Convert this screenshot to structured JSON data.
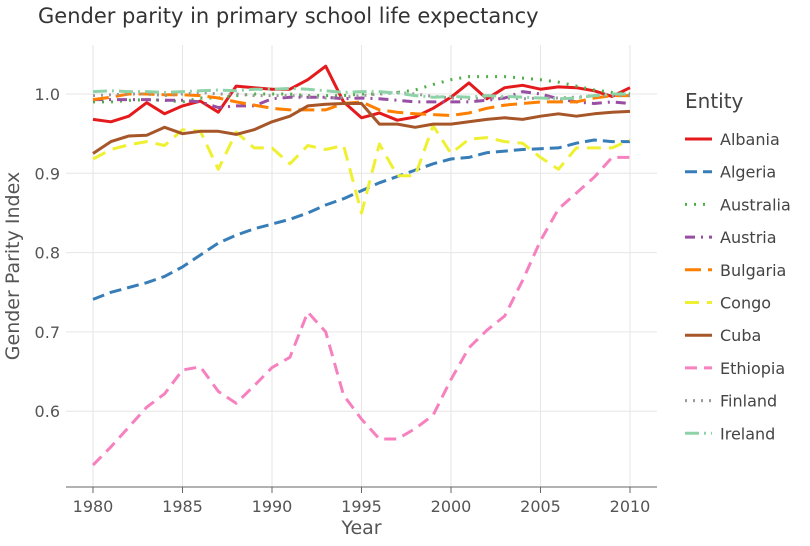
{
  "chart_data": {
    "type": "line",
    "title": "Gender parity in primary school life expectancy",
    "xlabel": "Year",
    "ylabel": "Gender Parity Index",
    "xlim": [
      1979,
      2011
    ],
    "ylim": [
      0.52,
      1.06
    ],
    "xticks": [
      1980,
      1985,
      1990,
      1995,
      2000,
      2005,
      2010
    ],
    "yticks": [
      0.6,
      0.7,
      0.8,
      0.9,
      1.0
    ],
    "grid": true,
    "legend_title": "Entity",
    "legend_placement": "right",
    "x": [
      1980,
      1981,
      1982,
      1983,
      1984,
      1985,
      1986,
      1987,
      1988,
      1989,
      1990,
      1991,
      1992,
      1993,
      1994,
      1995,
      1996,
      1997,
      1998,
      1999,
      2000,
      2001,
      2002,
      2003,
      2004,
      2005,
      2006,
      2007,
      2008,
      2009,
      2010
    ],
    "series": [
      {
        "name": "Albania",
        "color": "#e41a1c",
        "dash": "",
        "values": [
          0.968,
          0.965,
          0.972,
          0.989,
          0.975,
          0.985,
          0.991,
          0.977,
          1.01,
          1.008,
          1.006,
          1.006,
          1.018,
          1.035,
          0.99,
          0.97,
          0.976,
          0.967,
          0.971,
          0.982,
          0.996,
          1.014,
          0.994,
          1.008,
          1.011,
          1.006,
          1.009,
          1.008,
          1.004,
          0.997,
          1.008
        ]
      },
      {
        "name": "Algeria",
        "color": "#377eb8",
        "dash": "12,6",
        "values": [
          0.741,
          0.75,
          0.756,
          0.762,
          0.77,
          0.782,
          0.797,
          0.812,
          0.822,
          0.83,
          0.836,
          0.842,
          0.85,
          0.86,
          0.868,
          0.878,
          0.888,
          0.896,
          0.904,
          0.912,
          0.918,
          0.92,
          0.926,
          0.928,
          0.93,
          0.931,
          0.932,
          0.938,
          0.942,
          0.94,
          0.94
        ]
      },
      {
        "name": "Australia",
        "color": "#4daf4a",
        "dash": "2,7",
        "values": [
          0.99,
          0.99,
          0.992,
          0.993,
          0.992,
          0.99,
          0.995,
          0.995,
          0.998,
          1.0,
          1.0,
          1.0,
          0.998,
          0.998,
          0.998,
          1.0,
          1.0,
          1.002,
          1.005,
          1.012,
          1.018,
          1.022,
          1.022,
          1.022,
          1.02,
          1.018,
          1.015,
          1.01,
          1.005,
          1.002,
          1.0
        ]
      },
      {
        "name": "Austria",
        "color": "#984ea3",
        "dash": "10,6,2,6",
        "values": [
          0.993,
          0.993,
          0.993,
          0.993,
          0.992,
          0.992,
          0.99,
          0.983,
          0.985,
          0.985,
          0.994,
          0.996,
          0.996,
          0.996,
          0.994,
          0.995,
          0.994,
          0.992,
          0.99,
          0.99,
          0.99,
          0.99,
          0.992,
          0.995,
          1.003,
          1.0,
          0.994,
          0.99,
          0.988,
          0.99,
          0.988
        ]
      },
      {
        "name": "Bulgaria",
        "color": "#ff7f00",
        "dash": "16,7",
        "values": [
          0.993,
          0.996,
          1.0,
          1.0,
          0.999,
          0.999,
          0.998,
          0.995,
          0.99,
          0.986,
          0.982,
          0.98,
          0.98,
          0.98,
          0.988,
          0.99,
          0.98,
          0.977,
          0.975,
          0.974,
          0.973,
          0.976,
          0.982,
          0.986,
          0.988,
          0.99,
          0.99,
          0.99,
          0.995,
          0.998,
          0.998
        ]
      },
      {
        "name": "Congo",
        "color": "#f0f032",
        "dash": "14,8",
        "values": [
          0.918,
          0.93,
          0.936,
          0.94,
          0.935,
          0.955,
          0.953,
          0.905,
          0.952,
          0.932,
          0.932,
          0.912,
          0.935,
          0.93,
          0.935,
          0.85,
          0.937,
          0.897,
          0.897,
          0.96,
          0.925,
          0.943,
          0.945,
          0.94,
          0.938,
          0.92,
          0.905,
          0.932,
          0.932,
          0.932,
          0.942
        ]
      },
      {
        "name": "Cuba",
        "color": "#a65628",
        "dash": "",
        "values": [
          0.925,
          0.94,
          0.947,
          0.948,
          0.958,
          0.95,
          0.953,
          0.953,
          0.949,
          0.955,
          0.965,
          0.972,
          0.985,
          0.987,
          0.988,
          0.988,
          0.962,
          0.962,
          0.958,
          0.962,
          0.962,
          0.965,
          0.968,
          0.97,
          0.968,
          0.972,
          0.975,
          0.972,
          0.975,
          0.977,
          0.978
        ]
      },
      {
        "name": "Ethiopia",
        "color": "#f781bf",
        "dash": "12,7",
        "values": [
          0.532,
          0.555,
          0.58,
          0.605,
          0.622,
          0.652,
          0.656,
          0.625,
          0.61,
          0.632,
          0.655,
          0.668,
          0.725,
          0.7,
          0.62,
          0.59,
          0.565,
          0.565,
          0.578,
          0.595,
          0.64,
          0.68,
          0.702,
          0.72,
          0.765,
          0.815,
          0.855,
          0.875,
          0.895,
          0.92,
          0.92
        ]
      },
      {
        "name": "Finland",
        "color": "#999999",
        "dash": "2,6",
        "values": [
          0.998,
          0.999,
          1.0,
          1.0,
          0.998,
          1.0,
          1.002,
          1.0,
          1.0,
          0.998,
          0.998,
          0.998,
          0.997,
          0.995,
          0.996,
          0.998,
          1.0,
          1.002,
          1.0,
          0.997,
          0.995,
          0.994,
          0.995,
          0.995,
          0.994,
          0.995,
          0.995,
          0.996,
          0.998,
          0.998,
          0.998
        ]
      },
      {
        "name": "Ireland",
        "color": "#8dd3a7",
        "dash": "14,5,2,5",
        "values": [
          1.003,
          1.004,
          1.003,
          1.003,
          1.002,
          1.003,
          1.004,
          1.005,
          1.004,
          1.006,
          1.006,
          1.007,
          1.006,
          1.004,
          1.002,
          1.003,
          1.003,
          1.001,
          0.998,
          0.996,
          0.997,
          0.996,
          0.998,
          0.997,
          0.996,
          0.995,
          0.994,
          0.995,
          0.998,
          1.0,
          1.0
        ]
      }
    ]
  }
}
